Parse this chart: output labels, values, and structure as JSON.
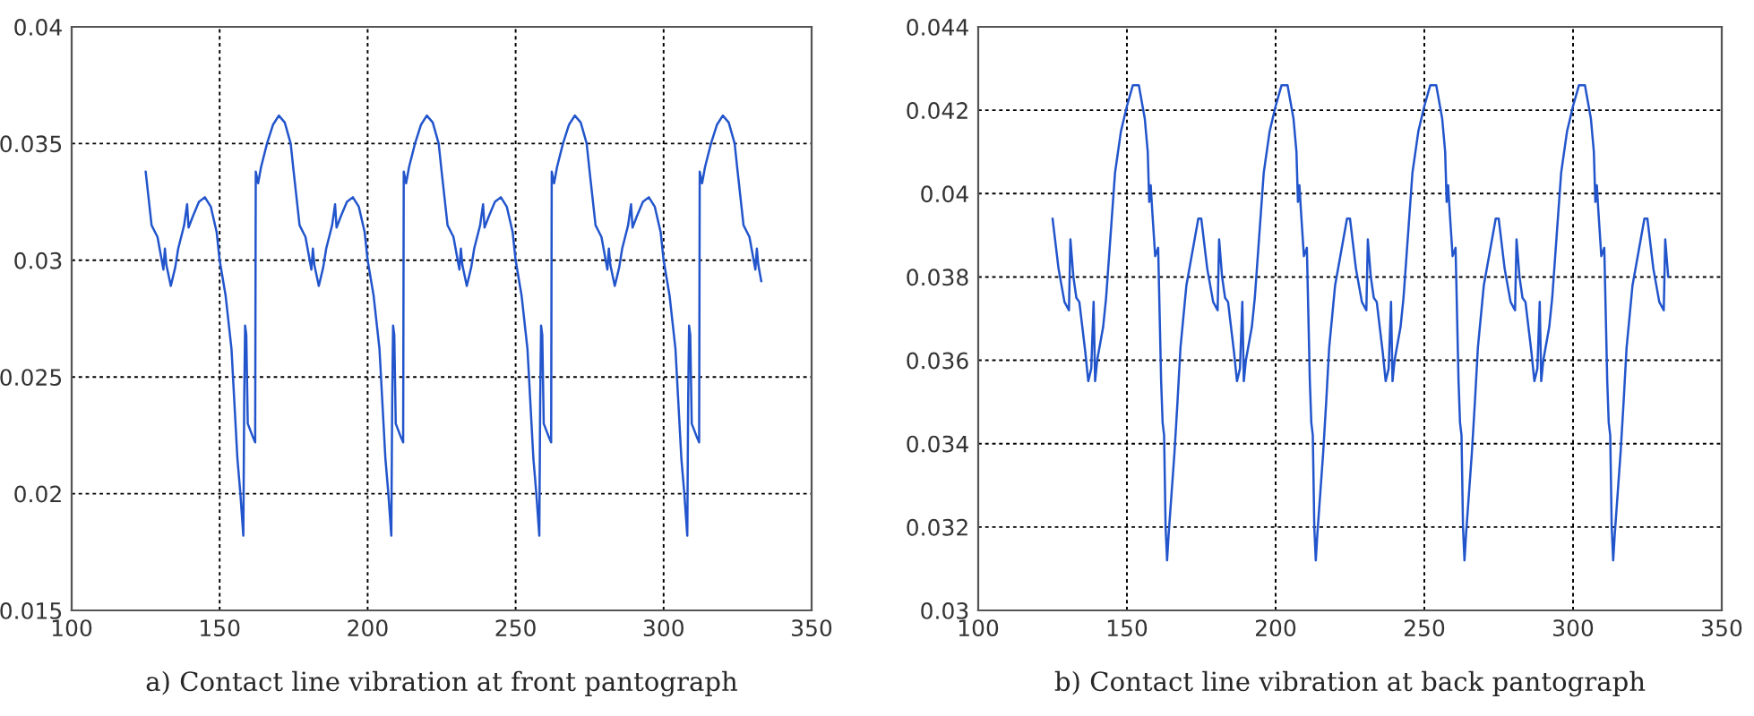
{
  "chart_data": [
    {
      "type": "line",
      "annotations": [
        "a) Contact line vibration at front pantograph"
      ],
      "xlim": [
        100,
        350
      ],
      "xticks": [
        100,
        150,
        200,
        250,
        300,
        350
      ],
      "ylim": [
        0.015,
        0.04
      ],
      "yticks": [
        0.015,
        0.02,
        0.025,
        0.03,
        0.035,
        0.04
      ],
      "grid": true,
      "line_style": "solid",
      "marker": "none",
      "series": [
        {
          "color": "#2255cc",
          "x": [
            125,
            127,
            129,
            131,
            131.5,
            132,
            133.5,
            135,
            136,
            138,
            139,
            139.5,
            141,
            143,
            145,
            147,
            149,
            150,
            152,
            154,
            156,
            157,
            158,
            158.3,
            158.6,
            159,
            159.5,
            161,
            162,
            162.2,
            163,
            164,
            166,
            168,
            170,
            172,
            174,
            175,
            177,
            179,
            181,
            181.5,
            182,
            183.5,
            185,
            186,
            188,
            189,
            189.5,
            191,
            193,
            195,
            197,
            199,
            200,
            202,
            204,
            206,
            207,
            208,
            208.3,
            208.6,
            209,
            209.5,
            211,
            212,
            212.2,
            213,
            214,
            216,
            218,
            220,
            222,
            224,
            225,
            227,
            229,
            231,
            231.5,
            232,
            233.5,
            235,
            236,
            238,
            239,
            239.5,
            241,
            243,
            245,
            247,
            249,
            250,
            252,
            254,
            256,
            257,
            258,
            258.3,
            258.6,
            259,
            259.5,
            261,
            262,
            262.2,
            263,
            264,
            266,
            268,
            270,
            272,
            274,
            275,
            277,
            279,
            281,
            281.5,
            282,
            283.5,
            285,
            286,
            288,
            289,
            289.5,
            291,
            293,
            295,
            297,
            299,
            300,
            302,
            304,
            306,
            307,
            308,
            308.3,
            308.6,
            309,
            309.5,
            311,
            312,
            312.2,
            313,
            314,
            316,
            318,
            320,
            322,
            324,
            325,
            327,
            329,
            331,
            331.5,
            332,
            333
          ],
          "values": [
            0.0338,
            0.0315,
            0.031,
            0.0296,
            0.0305,
            0.0298,
            0.0289,
            0.0297,
            0.0305,
            0.0315,
            0.0324,
            0.0314,
            0.0319,
            0.0325,
            0.0327,
            0.0323,
            0.0312,
            0.03,
            0.0285,
            0.0262,
            0.0215,
            0.02,
            0.0182,
            0.024,
            0.0272,
            0.0268,
            0.023,
            0.0225,
            0.0222,
            0.0338,
            0.0333,
            0.034,
            0.035,
            0.0358,
            0.0362,
            0.0359,
            0.035,
            0.0338,
            0.0315,
            0.031,
            0.0296,
            0.0305,
            0.0298,
            0.0289,
            0.0297,
            0.0305,
            0.0315,
            0.0324,
            0.0314,
            0.0319,
            0.0325,
            0.0327,
            0.0323,
            0.0312,
            0.03,
            0.0285,
            0.0262,
            0.0215,
            0.02,
            0.0182,
            0.024,
            0.0272,
            0.0268,
            0.023,
            0.0225,
            0.0222,
            0.0338,
            0.0333,
            0.034,
            0.035,
            0.0358,
            0.0362,
            0.0359,
            0.035,
            0.0338,
            0.0315,
            0.031,
            0.0296,
            0.0305,
            0.0298,
            0.0289,
            0.0297,
            0.0305,
            0.0315,
            0.0324,
            0.0314,
            0.0319,
            0.0325,
            0.0327,
            0.0323,
            0.0312,
            0.03,
            0.0285,
            0.0262,
            0.0215,
            0.02,
            0.0182,
            0.024,
            0.0272,
            0.0268,
            0.023,
            0.0225,
            0.0222,
            0.0338,
            0.0333,
            0.034,
            0.035,
            0.0358,
            0.0362,
            0.0359,
            0.035,
            0.0338,
            0.0315,
            0.031,
            0.0296,
            0.0305,
            0.0298,
            0.0289,
            0.0297,
            0.0305,
            0.0315,
            0.0324,
            0.0314,
            0.0319,
            0.0325,
            0.0327,
            0.0323,
            0.0312,
            0.03,
            0.0285,
            0.0262,
            0.0215,
            0.02,
            0.0182,
            0.024,
            0.0272,
            0.0268,
            0.023,
            0.0225,
            0.0222,
            0.0338,
            0.0333,
            0.034,
            0.035,
            0.0358,
            0.0362,
            0.0359,
            0.035,
            0.0338,
            0.0315,
            0.031,
            0.0296,
            0.0305,
            0.0298,
            0.0291
          ]
        }
      ]
    },
    {
      "type": "line",
      "annotations": [
        "b) Contact line vibration at back pantograph"
      ],
      "xlim": [
        100,
        350
      ],
      "xticks": [
        100,
        150,
        200,
        250,
        300,
        350
      ],
      "ylim": [
        0.03,
        0.044
      ],
      "yticks": [
        0.03,
        0.032,
        0.034,
        0.036,
        0.038,
        0.04,
        0.042,
        0.044
      ],
      "grid": true,
      "line_style": "solid",
      "marker": "none",
      "series": [
        {
          "color": "#2255cc",
          "x": [
            125,
            127,
            129,
            130.5,
            131,
            132,
            133,
            134,
            135,
            136,
            137,
            138,
            138.8,
            139.3,
            140,
            142,
            143,
            144,
            146,
            148,
            150,
            152,
            154,
            156,
            157,
            157.5,
            158,
            158.5,
            159.5,
            160.5,
            161.5,
            162,
            162.5,
            163,
            163.5,
            164,
            165,
            166,
            167,
            168,
            170,
            172,
            174,
            175,
            177,
            179,
            180.5,
            181,
            182,
            183,
            184,
            185,
            186,
            187,
            188,
            188.8,
            189.3,
            190,
            192,
            193,
            194,
            196,
            198,
            200,
            202,
            204,
            206,
            207,
            207.5,
            208,
            208.5,
            209.5,
            210.5,
            211.5,
            212,
            212.5,
            213,
            213.5,
            214,
            215,
            216,
            217,
            218,
            220,
            222,
            224,
            225,
            227,
            229,
            230.5,
            231,
            232,
            233,
            234,
            235,
            236,
            237,
            238,
            238.8,
            239.3,
            240,
            242,
            243,
            244,
            246,
            248,
            250,
            252,
            254,
            256,
            257,
            257.5,
            258,
            258.5,
            259.5,
            260.5,
            261.5,
            262,
            262.5,
            263,
            263.5,
            264,
            265,
            266,
            267,
            268,
            270,
            272,
            274,
            275,
            277,
            279,
            280.5,
            281,
            282,
            283,
            284,
            285,
            286,
            287,
            288,
            288.8,
            289.3,
            290,
            292,
            293,
            294,
            296,
            298,
            300,
            302,
            304,
            306,
            307,
            307.5,
            308,
            308.5,
            309.5,
            310.5,
            311.5,
            312,
            312.5,
            313,
            313.5,
            314,
            315,
            316,
            317,
            318,
            320,
            322,
            324,
            325,
            327,
            329,
            330.5,
            331,
            332
          ],
          "values": [
            0.0394,
            0.0382,
            0.0374,
            0.0372,
            0.0389,
            0.038,
            0.0375,
            0.0374,
            0.0368,
            0.0362,
            0.0355,
            0.0358,
            0.0374,
            0.0355,
            0.036,
            0.0368,
            0.0375,
            0.0385,
            0.0405,
            0.0415,
            0.0421,
            0.0426,
            0.0426,
            0.0418,
            0.041,
            0.0398,
            0.0402,
            0.0396,
            0.0385,
            0.0387,
            0.0355,
            0.0345,
            0.0342,
            0.032,
            0.0312,
            0.0318,
            0.0328,
            0.0338,
            0.035,
            0.0363,
            0.0378,
            0.0386,
            0.0394,
            0.0394,
            0.0382,
            0.0374,
            0.0372,
            0.0389,
            0.038,
            0.0375,
            0.0374,
            0.0368,
            0.0362,
            0.0355,
            0.0358,
            0.0374,
            0.0355,
            0.036,
            0.0368,
            0.0375,
            0.0385,
            0.0405,
            0.0415,
            0.0421,
            0.0426,
            0.0426,
            0.0418,
            0.041,
            0.0398,
            0.0402,
            0.0396,
            0.0385,
            0.0387,
            0.0355,
            0.0345,
            0.0342,
            0.032,
            0.0312,
            0.0318,
            0.0328,
            0.0338,
            0.035,
            0.0363,
            0.0378,
            0.0386,
            0.0394,
            0.0394,
            0.0382,
            0.0374,
            0.0372,
            0.0389,
            0.038,
            0.0375,
            0.0374,
            0.0368,
            0.0362,
            0.0355,
            0.0358,
            0.0374,
            0.0355,
            0.036,
            0.0368,
            0.0375,
            0.0385,
            0.0405,
            0.0415,
            0.0421,
            0.0426,
            0.0426,
            0.0418,
            0.041,
            0.0398,
            0.0402,
            0.0396,
            0.0385,
            0.0387,
            0.0355,
            0.0345,
            0.0342,
            0.032,
            0.0312,
            0.0318,
            0.0328,
            0.0338,
            0.035,
            0.0363,
            0.0378,
            0.0386,
            0.0394,
            0.0394,
            0.0382,
            0.0374,
            0.0372,
            0.0389,
            0.038,
            0.0375,
            0.0374,
            0.0368,
            0.0362,
            0.0355,
            0.0358,
            0.0374,
            0.0355,
            0.036,
            0.0368,
            0.0375,
            0.0385,
            0.0405,
            0.0415,
            0.0421,
            0.0426,
            0.0426,
            0.0418,
            0.041,
            0.0398,
            0.0402,
            0.0396,
            0.0385,
            0.0387,
            0.0355,
            0.0345,
            0.0342,
            0.032,
            0.0312,
            0.0318,
            0.0328,
            0.0338,
            0.035,
            0.0363,
            0.0378,
            0.0386,
            0.0394,
            0.0394,
            0.0382,
            0.0374,
            0.0372,
            0.0389,
            0.038
          ]
        }
      ]
    }
  ]
}
